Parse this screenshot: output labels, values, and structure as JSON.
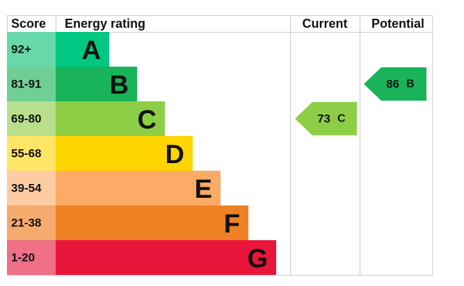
{
  "header": {
    "score": "Score",
    "rating": "Energy rating",
    "current": "Current",
    "potential": "Potential"
  },
  "bands": [
    {
      "range": "92+",
      "letter": "A"
    },
    {
      "range": "81-91",
      "letter": "B"
    },
    {
      "range": "69-80",
      "letter": "C"
    },
    {
      "range": "55-68",
      "letter": "D"
    },
    {
      "range": "39-54",
      "letter": "E"
    },
    {
      "range": "21-38",
      "letter": "F"
    },
    {
      "range": "1-20",
      "letter": "G"
    }
  ],
  "current": {
    "score": 73,
    "letter": "C"
  },
  "potential": {
    "score": 86,
    "letter": "B"
  }
}
